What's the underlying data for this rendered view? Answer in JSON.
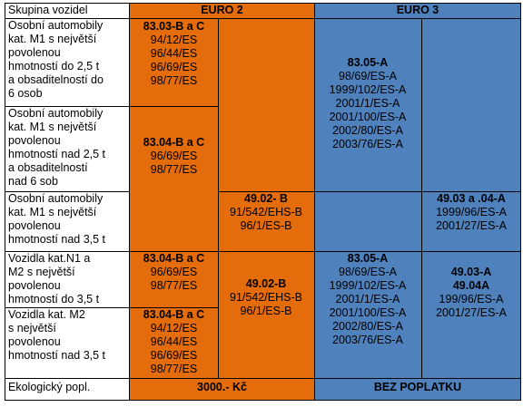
{
  "header": {
    "col_label": "Skupina vozidel",
    "euro2": "EURO 2",
    "euro3": "EURO 3"
  },
  "colors": {
    "orange": "#e46c0a",
    "blue": "#4f81bd"
  },
  "rows": {
    "r1": {
      "label": [
        "Osobní automobily",
        "kat. M1 s největší",
        "povolenou",
        "hmotností do 2,5 t",
        "a obsaditelností do",
        "6 osob"
      ],
      "euro2_main": [
        "83.03-B a C",
        "94/12/ES",
        "96/44/ES",
        "96/69/ES",
        "98/77/ES"
      ]
    },
    "r2": {
      "label": [
        "Osobní automobily",
        "kat. M1 s největší",
        "povolenou",
        "hmotností nad 2,5 t",
        "a obsaditelností",
        "nad 6 sob"
      ],
      "euro2_main": [
        "83.04-B a C",
        "96/69/ES",
        "98/77/ES"
      ]
    },
    "r12_euro3": [
      "83.05-A",
      "98/69/ES-A",
      "1999/102/ES-A",
      "2001/1/ES-A",
      "2001/100/ES-A",
      "2002/80/ES-A",
      "2003/76/ES-A"
    ],
    "r3": {
      "label": [
        "Osobní automobily",
        "kat. M1 s největší",
        "povolenou",
        "hmotností nad 3,5 t"
      ],
      "euro2_sub": [
        "49.02- B",
        "91/542/EHS-B",
        "96/1/ES-B"
      ],
      "euro3_sub": [
        "49.03 a .04-A",
        "1999/96/ES-A",
        "2001/27/ES-A"
      ]
    },
    "r4": {
      "label": [
        "Vozidla kat.N1 a",
        "M2 s největší",
        "povolenou",
        "hmotností do 3,5 t"
      ],
      "euro2_main": [
        "83.04-B a C",
        "96/69/ES",
        "98/77/ES"
      ]
    },
    "r5": {
      "label": [
        "Vozidla kat. M2",
        "s největší",
        "povolenou",
        "hmotností nad 3,5 t"
      ],
      "euro2_main": [
        "83.04-B a C",
        "94/12/ES",
        "96/44/ES",
        "96/69/ES",
        "98/77/ES"
      ]
    },
    "r45_euro2_sub": [
      "49.02-B",
      "91/542/EHS-B",
      "96/1/ES-B"
    ],
    "r45_euro3_main": [
      "83.05-A",
      "98/69/ES-A",
      "1999/102/ES-A",
      "2001/1/ES-A",
      "2001/100/ES-A",
      "2002/80/ES-A",
      "2003/76/ES-A"
    ],
    "r45_euro3_sub": [
      "49.03-A",
      "49.04A",
      "199/96/ES-A",
      "2001/27/ES-A"
    ]
  },
  "footer": {
    "label": "Ekologický popl.",
    "euro2": "3000.- Kč",
    "euro3": "BEZ POPLATKU"
  }
}
